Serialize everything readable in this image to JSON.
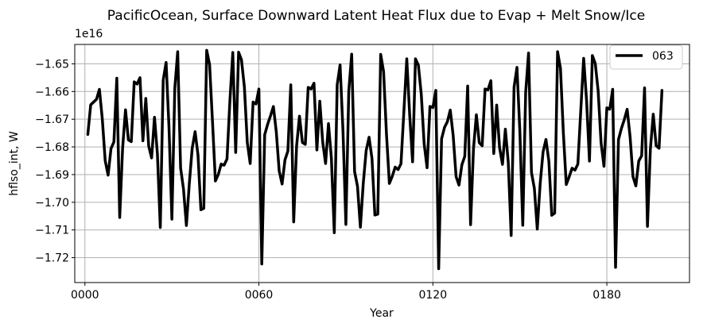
{
  "chart_data": {
    "type": "line",
    "title": "PacificOcean, Surface Downward Latent Heat Flux due to Evap + Melt Snow/Ice",
    "xlabel": "Year",
    "ylabel": "hflso_int, W",
    "y_offset_label": "1e16",
    "xlim": [
      -3.5,
      208.5
    ],
    "ylim": [
      -1.729,
      -1.643
    ],
    "x_ticks": [
      0,
      60,
      120,
      180
    ],
    "x_tick_labels": [
      "0000",
      "0060",
      "0120",
      "0180"
    ],
    "y_ticks": [
      -1.72,
      -1.71,
      -1.7,
      -1.69,
      -1.68,
      -1.67,
      -1.66,
      -1.65
    ],
    "y_tick_labels": [
      "−1.72",
      "−1.71",
      "−1.70",
      "−1.69",
      "−1.68",
      "−1.67",
      "−1.66",
      "−1.65"
    ],
    "grid": true,
    "legend_position": "top-right",
    "colors": {
      "series": "#000000",
      "grid": "#b0b0b0"
    },
    "series": [
      {
        "name": "063",
        "x_start": 1,
        "x_step": 1,
        "values": [
          -1.6755,
          -1.6648,
          -1.6638,
          -1.6628,
          -1.6592,
          -1.6699,
          -1.685,
          -1.6902,
          -1.6806,
          -1.6782,
          -1.6552,
          -1.7055,
          -1.6805,
          -1.6666,
          -1.6775,
          -1.6781,
          -1.6565,
          -1.6573,
          -1.655,
          -1.6778,
          -1.6625,
          -1.6797,
          -1.684,
          -1.6693,
          -1.6825,
          -1.7091,
          -1.6559,
          -1.6495,
          -1.6729,
          -1.7061,
          -1.6589,
          -1.6456,
          -1.6876,
          -1.6952,
          -1.7084,
          -1.6933,
          -1.6805,
          -1.6745,
          -1.6829,
          -1.7027,
          -1.7022,
          -1.6451,
          -1.6503,
          -1.6709,
          -1.6923,
          -1.69,
          -1.6862,
          -1.6866,
          -1.6844,
          -1.6635,
          -1.6459,
          -1.682,
          -1.6458,
          -1.6486,
          -1.6584,
          -1.6784,
          -1.686,
          -1.6638,
          -1.6645,
          -1.6591,
          -1.7223,
          -1.6756,
          -1.6719,
          -1.6688,
          -1.6654,
          -1.6746,
          -1.6887,
          -1.6934,
          -1.6847,
          -1.6815,
          -1.6576,
          -1.7071,
          -1.6797,
          -1.6689,
          -1.6784,
          -1.6791,
          -1.6585,
          -1.6591,
          -1.657,
          -1.6811,
          -1.6635,
          -1.6782,
          -1.686,
          -1.6716,
          -1.6841,
          -1.711,
          -1.6576,
          -1.6504,
          -1.6742,
          -1.708,
          -1.6598,
          -1.6465,
          -1.6889,
          -1.6942,
          -1.709,
          -1.6931,
          -1.6813,
          -1.6765,
          -1.6842,
          -1.7046,
          -1.7043,
          -1.6466,
          -1.6528,
          -1.6754,
          -1.6932,
          -1.6906,
          -1.6873,
          -1.6882,
          -1.6861,
          -1.6672,
          -1.6482,
          -1.6684,
          -1.6854,
          -1.6482,
          -1.6505,
          -1.661,
          -1.679,
          -1.6875,
          -1.6654,
          -1.6658,
          -1.6596,
          -1.724,
          -1.6771,
          -1.673,
          -1.6709,
          -1.6667,
          -1.6759,
          -1.6907,
          -1.6938,
          -1.6865,
          -1.6834,
          -1.658,
          -1.7081,
          -1.6807,
          -1.6684,
          -1.6785,
          -1.6796,
          -1.6591,
          -1.6594,
          -1.6561,
          -1.6824,
          -1.6649,
          -1.6803,
          -1.6863,
          -1.6736,
          -1.6856,
          -1.712,
          -1.6584,
          -1.6513,
          -1.6745,
          -1.7083,
          -1.6603,
          -1.6461,
          -1.6892,
          -1.695,
          -1.7097,
          -1.6933,
          -1.6818,
          -1.6773,
          -1.6852,
          -1.7047,
          -1.7039,
          -1.6456,
          -1.6516,
          -1.675,
          -1.6936,
          -1.6908,
          -1.6877,
          -1.6884,
          -1.6862,
          -1.6669,
          -1.648,
          -1.6632,
          -1.6851,
          -1.647,
          -1.6499,
          -1.6598,
          -1.6785,
          -1.687,
          -1.6659,
          -1.6664,
          -1.6592,
          -1.7235,
          -1.6774,
          -1.6734,
          -1.6702,
          -1.6664,
          -1.6762,
          -1.6907,
          -1.6941,
          -1.6851,
          -1.6832,
          -1.6587,
          -1.7087,
          -1.6809,
          -1.6682,
          -1.6796,
          -1.6805,
          -1.6596
        ]
      }
    ]
  }
}
